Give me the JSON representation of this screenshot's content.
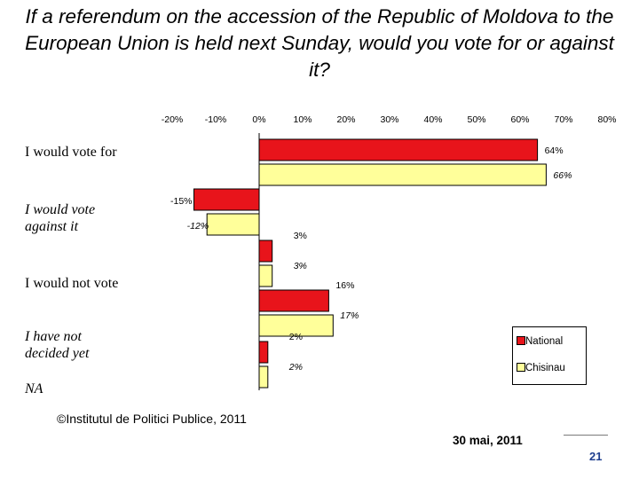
{
  "title": "If a referendum on the accession of the Republic of Moldova to the European Union is held next Sunday, would you vote for or against it?",
  "chart_data": {
    "type": "bar",
    "orientation": "horizontal",
    "categories": [
      "I would vote for",
      "I would vote against it",
      "I would not vote",
      "I have not decided yet",
      "NA"
    ],
    "series": [
      {
        "name": "National",
        "color": "#e8141b",
        "values": [
          64,
          -15,
          3,
          16,
          2
        ],
        "labels": [
          "64%",
          "-15%",
          "3%",
          "16%",
          "2%"
        ]
      },
      {
        "name": "Chisinau",
        "color": "#ffff9a",
        "values": [
          66,
          -12,
          3,
          17,
          2
        ],
        "labels": [
          "66%",
          "-12%",
          "3%",
          "17%",
          "2%"
        ]
      }
    ],
    "xlim": [
      -20,
      80
    ],
    "xticks": [
      -20,
      -10,
      0,
      10,
      20,
      30,
      40,
      50,
      60,
      70,
      80
    ],
    "xtick_labels": [
      "-20%",
      "-10%",
      "0%",
      "10%",
      "20%",
      "30%",
      "40%",
      "50%",
      "60%",
      "70%",
      "80%"
    ],
    "grid": false,
    "legend_position": "bottom-right"
  },
  "footer": {
    "source": "©Institutul de Politici Publice, 2011",
    "date": "30 mai, 2011",
    "page": "21"
  }
}
